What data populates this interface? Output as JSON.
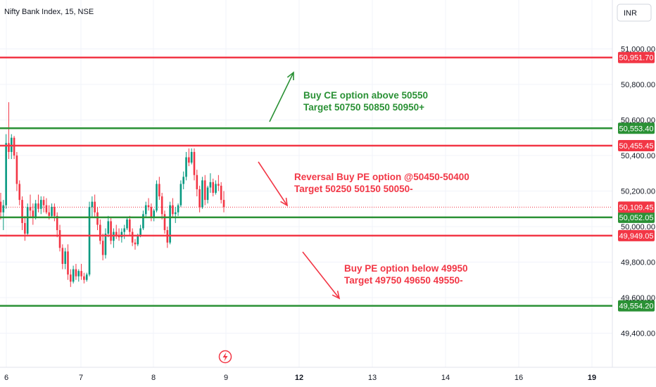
{
  "header": {
    "title": "Nifty Bank Index, 15, NSE",
    "currency": "INR"
  },
  "colors": {
    "up": "#089981",
    "down": "#f23645",
    "green_line": "#2a9135",
    "red_line": "#f23645",
    "anno_green": "#2a9135",
    "anno_red": "#f23645"
  },
  "icons": {
    "alert_marker": "lightning-bolt-icon"
  },
  "chart_data": {
    "type": "candlestick",
    "title": "Nifty Bank Index, 15, NSE",
    "y_axis": {
      "ticks": [
        "51,000.00",
        "50,800.00",
        "50,600.00",
        "50,400.00",
        "50,200.00",
        "50,000.00",
        "49,800.00",
        "49,600.00",
        "49,400.00"
      ],
      "range": [
        49330,
        51100
      ]
    },
    "x_axis": {
      "ticks": [
        {
          "label": "6",
          "bold": false
        },
        {
          "label": "7",
          "bold": false
        },
        {
          "label": "8",
          "bold": false
        },
        {
          "label": "9",
          "bold": false
        },
        {
          "label": "12",
          "bold": true
        },
        {
          "label": "13",
          "bold": false
        },
        {
          "label": "14",
          "bold": false
        },
        {
          "label": "16",
          "bold": false
        },
        {
          "label": "19",
          "bold": true
        }
      ]
    },
    "levels": [
      {
        "value": 50951.7,
        "label": "50,951.70",
        "color": "red"
      },
      {
        "value": 50553.4,
        "label": "50,553.40",
        "color": "green"
      },
      {
        "value": 50455.45,
        "label": "50,455.45",
        "color": "red"
      },
      {
        "value": 50052.05,
        "label": "50,052.05",
        "color": "green"
      },
      {
        "value": 49949.05,
        "label": "49,949.05",
        "color": "red"
      },
      {
        "value": 49554.2,
        "label": "49,554.20",
        "color": "green"
      }
    ],
    "current_price": {
      "value": 50109.45,
      "label": "50,109.45"
    },
    "annotations": [
      {
        "lines": [
          "Buy CE option above 50550",
          "Target 50750 50850 50950+"
        ],
        "color": "green",
        "arrow": "up"
      },
      {
        "lines": [
          "Reversal Buy PE option @50450-50400",
          "Target 50250 50150 50050-"
        ],
        "color": "red",
        "arrow": "down"
      },
      {
        "lines": [
          "Buy PE option below 49950",
          "Target 49750 49650 49550-"
        ],
        "color": "red",
        "arrow": "down"
      }
    ],
    "candles": [
      [
        50140,
        50190,
        50040,
        50080
      ],
      [
        50080,
        50150,
        49980,
        50120
      ],
      [
        50120,
        50520,
        50100,
        50470
      ],
      [
        50470,
        50700,
        50380,
        50420
      ],
      [
        50420,
        50520,
        50380,
        50500
      ],
      [
        50500,
        50510,
        50380,
        50400
      ],
      [
        50400,
        50420,
        50200,
        50240
      ],
      [
        50240,
        50260,
        50120,
        50150
      ],
      [
        50150,
        50170,
        49980,
        50020
      ],
      [
        50020,
        50060,
        49920,
        49960
      ],
      [
        49960,
        50130,
        49950,
        50110
      ],
      [
        50110,
        50180,
        50050,
        50090
      ],
      [
        50090,
        50130,
        50010,
        50050
      ],
      [
        50050,
        50150,
        50040,
        50130
      ],
      [
        50130,
        50180,
        50080,
        50100
      ],
      [
        50100,
        50170,
        50070,
        50150
      ],
      [
        50150,
        50170,
        50080,
        50120
      ],
      [
        50120,
        50160,
        50070,
        50080
      ],
      [
        50080,
        50120,
        50040,
        50060
      ],
      [
        50060,
        50130,
        50050,
        50110
      ],
      [
        50110,
        50130,
        50030,
        50060
      ],
      [
        50060,
        50080,
        49940,
        49980
      ],
      [
        49980,
        50010,
        49860,
        49880
      ],
      [
        49880,
        49900,
        49760,
        49790
      ],
      [
        49790,
        49880,
        49760,
        49860
      ],
      [
        49860,
        49900,
        49700,
        49730
      ],
      [
        49730,
        49760,
        49660,
        49690
      ],
      [
        49690,
        49780,
        49680,
        49760
      ],
      [
        49760,
        49790,
        49700,
        49720
      ],
      [
        49720,
        49760,
        49690,
        49750
      ],
      [
        49750,
        49790,
        49700,
        49720
      ],
      [
        49720,
        49740,
        49680,
        49700
      ],
      [
        49700,
        49740,
        49690,
        49730
      ],
      [
        49730,
        50140,
        49720,
        50110
      ],
      [
        50110,
        50170,
        50050,
        50140
      ],
      [
        50140,
        50180,
        50050,
        50080
      ],
      [
        50080,
        50110,
        49980,
        50010
      ],
      [
        50010,
        50040,
        49900,
        49920
      ],
      [
        49920,
        49960,
        49810,
        49840
      ],
      [
        49840,
        49990,
        49820,
        49960
      ],
      [
        49960,
        50060,
        49940,
        50030
      ],
      [
        50030,
        50050,
        49900,
        49920
      ],
      [
        49920,
        49990,
        49880,
        49970
      ],
      [
        49970,
        50010,
        49930,
        49950
      ],
      [
        49950,
        49990,
        49920,
        49940
      ],
      [
        49940,
        49990,
        49910,
        49970
      ],
      [
        49970,
        50010,
        49930,
        49990
      ],
      [
        49990,
        50050,
        49980,
        50040
      ],
      [
        50040,
        50060,
        49950,
        49970
      ],
      [
        49970,
        49990,
        49890,
        49910
      ],
      [
        49910,
        49930,
        49870,
        49900
      ],
      [
        49900,
        49960,
        49890,
        49950
      ],
      [
        49950,
        50010,
        49940,
        49990
      ],
      [
        49990,
        50090,
        49980,
        50070
      ],
      [
        50070,
        50140,
        50050,
        50120
      ],
      [
        50120,
        50160,
        50090,
        50110
      ],
      [
        50110,
        50130,
        50030,
        50050
      ],
      [
        50050,
        50100,
        50030,
        50090
      ],
      [
        50090,
        50260,
        50080,
        50240
      ],
      [
        50240,
        50280,
        50150,
        50170
      ],
      [
        50170,
        50190,
        50040,
        50070
      ],
      [
        50070,
        50090,
        49960,
        49980
      ],
      [
        49980,
        50000,
        49880,
        49910
      ],
      [
        49910,
        50140,
        49900,
        50120
      ],
      [
        50120,
        50160,
        50050,
        50070
      ],
      [
        50070,
        50110,
        50020,
        50080
      ],
      [
        50080,
        50130,
        50060,
        50120
      ],
      [
        50120,
        50260,
        50110,
        50240
      ],
      [
        50240,
        50310,
        50210,
        50280
      ],
      [
        50280,
        50420,
        50260,
        50390
      ],
      [
        50390,
        50440,
        50340,
        50360
      ],
      [
        50360,
        50440,
        50350,
        50420
      ],
      [
        50420,
        50440,
        50260,
        50290
      ],
      [
        50290,
        50320,
        50170,
        50210
      ],
      [
        50210,
        50230,
        50080,
        50110
      ],
      [
        50110,
        50280,
        50100,
        50260
      ],
      [
        50260,
        50290,
        50120,
        50150
      ],
      [
        50150,
        50230,
        50130,
        50220
      ],
      [
        50220,
        50300,
        50190,
        50250
      ],
      [
        50250,
        50270,
        50170,
        50190
      ],
      [
        50190,
        50260,
        50180,
        50240
      ],
      [
        50240,
        50290,
        50200,
        50230
      ],
      [
        50230,
        50250,
        50130,
        50150
      ],
      [
        50150,
        50200,
        50080,
        50109
      ]
    ]
  }
}
